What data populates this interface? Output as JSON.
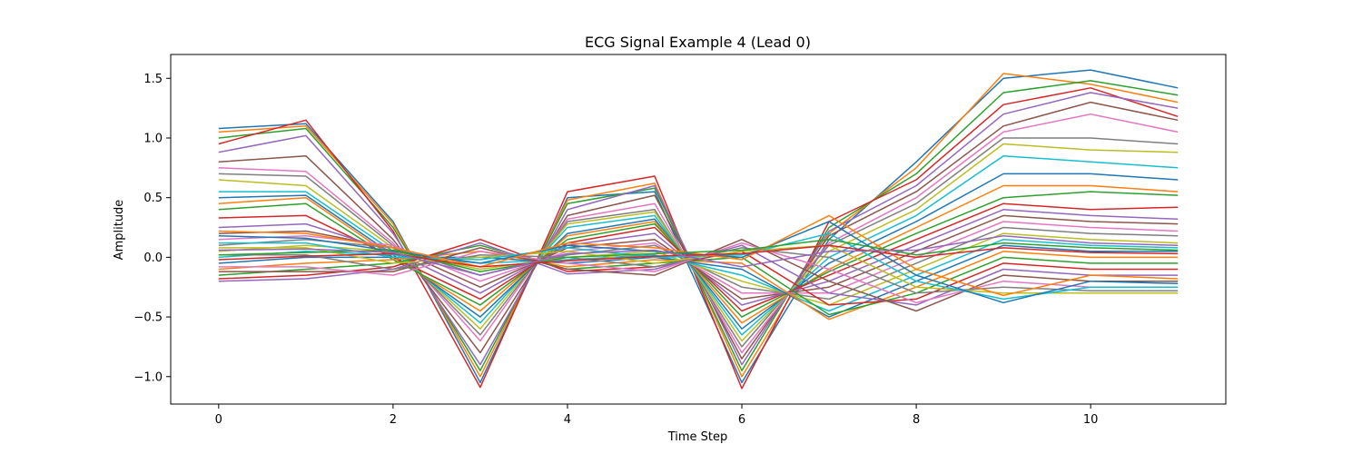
{
  "chart_data": {
    "type": "line",
    "title": "ECG Signal Example 4 (Lead 0)",
    "xlabel": "Time Step",
    "ylabel": "Amplitude",
    "xlim": [
      -0.55,
      11.55
    ],
    "ylim": [
      -1.23,
      1.7
    ],
    "xticks": [
      0,
      2,
      4,
      6,
      8,
      10
    ],
    "yticks": [
      -1.0,
      -0.5,
      0.0,
      0.5,
      1.0,
      1.5
    ],
    "ytick_labels": [
      "−1.0",
      "−0.5",
      "0.0",
      "0.5",
      "1.0",
      "1.5"
    ],
    "x": [
      0,
      1,
      2,
      3,
      4,
      5,
      6,
      7,
      8,
      9,
      10,
      11
    ],
    "grid": false,
    "legend": "none",
    "series_note": "approximately 100 overlapping traces; representative traces listed",
    "colors": [
      "#1f77b4",
      "#ff7f0e",
      "#2ca02c",
      "#d62728",
      "#9467bd",
      "#8c564b",
      "#e377c2",
      "#7f7f7f",
      "#bcbd22",
      "#17becf"
    ],
    "series": [
      {
        "values": [
          1.08,
          1.12,
          0.3,
          -1.05,
          0.5,
          0.55,
          -1.05,
          0.15,
          0.8,
          1.5,
          1.57,
          1.42
        ]
      },
      {
        "values": [
          1.05,
          1.1,
          0.28,
          -1.0,
          0.48,
          0.62,
          -1.0,
          0.2,
          0.75,
          1.54,
          1.45,
          1.3
        ]
      },
      {
        "values": [
          1.0,
          1.08,
          0.25,
          -0.95,
          0.45,
          0.58,
          -0.95,
          0.25,
          0.7,
          1.38,
          1.48,
          1.36
        ]
      },
      {
        "values": [
          0.95,
          1.15,
          0.22,
          -1.09,
          0.55,
          0.68,
          -1.1,
          0.3,
          0.65,
          1.28,
          1.42,
          1.18
        ]
      },
      {
        "values": [
          0.88,
          1.02,
          0.2,
          -0.9,
          0.4,
          0.6,
          -0.9,
          0.22,
          0.6,
          1.2,
          1.38,
          1.25
        ]
      },
      {
        "values": [
          0.8,
          0.85,
          0.15,
          -0.8,
          0.35,
          0.52,
          -0.85,
          0.18,
          0.55,
          1.1,
          1.3,
          1.15
        ]
      },
      {
        "values": [
          0.75,
          0.72,
          0.12,
          -0.7,
          0.32,
          0.45,
          -0.8,
          0.12,
          0.5,
          1.05,
          1.2,
          1.05
        ]
      },
      {
        "values": [
          0.7,
          0.68,
          0.1,
          -0.65,
          0.3,
          0.4,
          -0.75,
          0.1,
          0.45,
          1.0,
          1.0,
          0.95
        ]
      },
      {
        "values": [
          0.65,
          0.6,
          0.08,
          -0.6,
          0.28,
          0.38,
          -0.7,
          0.05,
          0.4,
          0.95,
          0.9,
          0.88
        ]
      },
      {
        "values": [
          0.55,
          0.55,
          0.05,
          -0.55,
          0.25,
          0.35,
          -0.65,
          0.0,
          0.35,
          0.85,
          0.8,
          0.75
        ]
      },
      {
        "values": [
          0.5,
          0.52,
          0.02,
          -0.5,
          0.2,
          0.32,
          -0.6,
          -0.05,
          0.3,
          0.7,
          0.7,
          0.65
        ]
      },
      {
        "values": [
          0.45,
          0.5,
          0.0,
          -0.45,
          0.18,
          0.3,
          -0.55,
          -0.1,
          0.25,
          0.6,
          0.6,
          0.55
        ]
      },
      {
        "values": [
          0.4,
          0.45,
          -0.02,
          -0.4,
          0.15,
          0.28,
          -0.5,
          -0.12,
          0.2,
          0.5,
          0.55,
          0.52
        ]
      },
      {
        "values": [
          0.33,
          0.35,
          0.0,
          -0.35,
          0.12,
          0.25,
          -0.45,
          -0.15,
          0.15,
          0.45,
          0.4,
          0.42
        ]
      },
      {
        "values": [
          0.25,
          0.28,
          0.05,
          -0.3,
          0.1,
          0.2,
          -0.4,
          -0.2,
          0.1,
          0.4,
          0.35,
          0.32
        ]
      },
      {
        "values": [
          0.2,
          0.22,
          0.08,
          -0.25,
          0.08,
          0.15,
          -0.35,
          -0.25,
          0.05,
          0.35,
          0.3,
          0.28
        ]
      },
      {
        "values": [
          0.15,
          0.18,
          0.1,
          -0.2,
          0.05,
          0.12,
          -0.3,
          -0.3,
          0.0,
          0.3,
          0.25,
          0.22
        ]
      },
      {
        "values": [
          0.1,
          0.15,
          0.08,
          -0.15,
          0.02,
          0.1,
          -0.25,
          -0.35,
          -0.05,
          0.25,
          0.2,
          0.18
        ]
      },
      {
        "values": [
          0.05,
          0.1,
          0.05,
          -0.1,
          0.0,
          0.05,
          -0.2,
          -0.4,
          -0.1,
          0.2,
          0.15,
          0.12
        ]
      },
      {
        "values": [
          0.0,
          0.05,
          0.02,
          -0.05,
          -0.02,
          0.02,
          -0.15,
          -0.45,
          -0.15,
          0.15,
          0.1,
          0.08
        ]
      },
      {
        "values": [
          -0.05,
          0.0,
          0.0,
          0.0,
          -0.05,
          0.0,
          -0.1,
          -0.5,
          -0.2,
          0.1,
          0.05,
          0.05
        ]
      },
      {
        "values": [
          -0.1,
          -0.05,
          -0.02,
          0.05,
          -0.08,
          -0.02,
          -0.05,
          -0.52,
          -0.25,
          0.05,
          0.0,
          0.0
        ]
      },
      {
        "values": [
          -0.15,
          -0.1,
          -0.05,
          0.1,
          -0.1,
          -0.05,
          0.0,
          -0.48,
          -0.3,
          0.0,
          -0.05,
          -0.05
        ]
      },
      {
        "values": [
          -0.18,
          -0.15,
          -0.08,
          0.15,
          -0.12,
          -0.08,
          0.05,
          -0.4,
          -0.35,
          -0.05,
          -0.1,
          -0.1
        ]
      },
      {
        "values": [
          -0.2,
          -0.18,
          -0.1,
          0.12,
          -0.14,
          -0.1,
          0.1,
          -0.3,
          -0.4,
          -0.1,
          -0.15,
          -0.15
        ]
      },
      {
        "values": [
          -0.12,
          -0.12,
          -0.12,
          0.08,
          -0.1,
          -0.15,
          0.15,
          -0.2,
          -0.45,
          -0.15,
          -0.2,
          -0.2
        ]
      },
      {
        "values": [
          -0.08,
          -0.08,
          -0.15,
          0.05,
          -0.05,
          -0.12,
          0.12,
          -0.1,
          -0.38,
          -0.2,
          -0.25,
          -0.25
        ]
      },
      {
        "values": [
          0.02,
          0.02,
          -0.1,
          0.02,
          0.0,
          -0.08,
          0.08,
          0.0,
          -0.3,
          -0.25,
          -0.28,
          -0.28
        ]
      },
      {
        "values": [
          0.08,
          0.08,
          -0.05,
          0.0,
          0.05,
          -0.05,
          0.05,
          0.1,
          -0.25,
          -0.3,
          -0.3,
          -0.3
        ]
      },
      {
        "values": [
          0.12,
          0.12,
          0.0,
          -0.02,
          0.08,
          0.0,
          0.02,
          0.2,
          -0.2,
          -0.35,
          -0.25,
          -0.25
        ]
      },
      {
        "values": [
          0.18,
          0.16,
          0.05,
          -0.05,
          0.1,
          0.05,
          0.0,
          0.3,
          -0.15,
          -0.38,
          -0.2,
          -0.22
        ]
      },
      {
        "values": [
          0.22,
          0.2,
          0.08,
          -0.08,
          0.12,
          0.08,
          -0.02,
          0.35,
          -0.1,
          -0.32,
          -0.15,
          -0.18
        ]
      },
      {
        "values": [
          0.02,
          0.04,
          0.06,
          -0.12,
          0.0,
          0.03,
          0.06,
          0.15,
          0.02,
          0.12,
          0.08,
          0.06
        ]
      },
      {
        "values": [
          -0.02,
          0.01,
          0.03,
          -0.08,
          -0.03,
          0.01,
          0.03,
          0.1,
          0.0,
          0.08,
          0.04,
          0.03
        ]
      },
      {
        "values": [
          0.06,
          0.07,
          0.04,
          -0.15,
          0.03,
          0.06,
          -0.08,
          0.05,
          0.06,
          0.18,
          0.12,
          0.1
        ]
      }
    ]
  }
}
